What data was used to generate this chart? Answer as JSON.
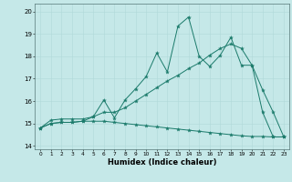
{
  "xlabel": "Humidex (Indice chaleur)",
  "xlim": [
    -0.5,
    23.5
  ],
  "ylim": [
    13.85,
    20.35
  ],
  "yticks": [
    14,
    15,
    16,
    17,
    18,
    19,
    20
  ],
  "xticks": [
    0,
    1,
    2,
    3,
    4,
    5,
    6,
    7,
    8,
    9,
    10,
    11,
    12,
    13,
    14,
    15,
    16,
    17,
    18,
    19,
    20,
    21,
    22,
    23
  ],
  "bg_color": "#c5e8e8",
  "grid_color": "#b0d8d8",
  "line_color": "#1a7a6a",
  "line1_x": [
    0,
    1,
    2,
    3,
    4,
    5,
    6,
    7,
    8,
    9,
    10,
    11,
    12,
    13,
    14,
    15,
    16,
    17,
    18,
    19,
    20,
    21,
    22,
    23
  ],
  "line1_y": [
    14.8,
    15.15,
    15.2,
    15.2,
    15.2,
    15.3,
    16.05,
    15.25,
    16.05,
    16.55,
    17.1,
    18.15,
    17.3,
    19.35,
    19.75,
    18.0,
    17.55,
    18.05,
    18.85,
    17.6,
    17.6,
    15.5,
    14.4,
    14.4
  ],
  "line2_x": [
    0,
    1,
    2,
    3,
    4,
    5,
    6,
    7,
    8,
    9,
    10,
    11,
    12,
    13,
    14,
    15,
    16,
    17,
    18,
    19,
    20,
    21,
    22,
    23
  ],
  "line2_y": [
    14.8,
    15.0,
    15.05,
    15.05,
    15.1,
    15.3,
    15.5,
    15.5,
    15.7,
    16.0,
    16.3,
    16.6,
    16.9,
    17.15,
    17.45,
    17.7,
    18.05,
    18.35,
    18.55,
    18.35,
    17.6,
    16.5,
    15.5,
    14.4
  ],
  "line3_x": [
    0,
    1,
    2,
    3,
    4,
    5,
    6,
    7,
    8,
    9,
    10,
    11,
    12,
    13,
    14,
    15,
    16,
    17,
    18,
    19,
    20,
    21,
    22,
    23
  ],
  "line3_y": [
    14.8,
    15.0,
    15.05,
    15.05,
    15.1,
    15.1,
    15.1,
    15.05,
    15.0,
    14.95,
    14.9,
    14.85,
    14.8,
    14.75,
    14.7,
    14.65,
    14.6,
    14.55,
    14.5,
    14.45,
    14.42,
    14.42,
    14.4,
    14.4
  ]
}
